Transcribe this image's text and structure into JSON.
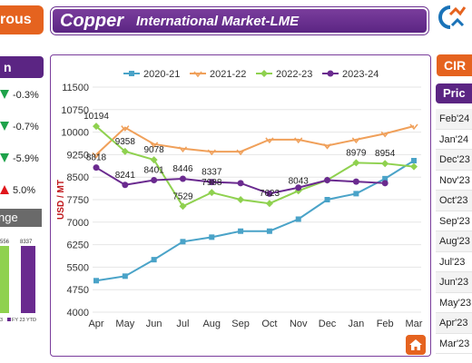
{
  "header": {
    "left_tab": "rous",
    "title": "Copper",
    "subtitle": "International Market-LME"
  },
  "left_panel": {
    "header": "n",
    "changes": [
      {
        "dir": "down",
        "value": "-0.3%"
      },
      {
        "dir": "down",
        "value": "-0.7%"
      },
      {
        "dir": "down",
        "value": "-5.9%"
      },
      {
        "dir": "up",
        "value": "5.0%"
      }
    ],
    "change_label": "nge",
    "bars": {
      "values": [
        "556",
        "8337"
      ],
      "legend": [
        "3",
        "FY 23 YTD"
      ]
    },
    "colors": {
      "up": "#e0161b",
      "down": "#1ea24a"
    }
  },
  "right_panel": {
    "tab": "CIR",
    "header": "Pric",
    "months": [
      "Feb'24",
      "Jan'24",
      "Dec'23",
      "Nov'23",
      "Oct'23",
      "Sep'23",
      "Aug'23",
      "Jul'23",
      "Jun'23",
      "May'23",
      "Apr'23",
      "Mar'23"
    ]
  },
  "chart_data": {
    "type": "line",
    "categories": [
      "Apr",
      "May",
      "Jun",
      "Jul",
      "Aug",
      "Sep",
      "Oct",
      "Nov",
      "Dec",
      "Jan",
      "Feb",
      "Mar"
    ],
    "ylabel": "USD / MT",
    "ylim": [
      4000,
      11500
    ],
    "yticks": [
      4000,
      4750,
      5500,
      6250,
      7000,
      7750,
      8500,
      9250,
      10000,
      10750,
      11500
    ],
    "legend_position": "top",
    "series": [
      {
        "name": "2020-21",
        "color": "#4aa3c8",
        "marker": "square",
        "values": [
          5050,
          5200,
          5750,
          6350,
          6500,
          6700,
          6700,
          7100,
          7750,
          7950,
          8450,
          9050
        ]
      },
      {
        "name": "2021-22",
        "color": "#f0a05a",
        "marker": "triangle",
        "values": [
          9250,
          10150,
          9600,
          9450,
          9350,
          9350,
          9750,
          9750,
          9550,
          9750,
          9950,
          10200
        ]
      },
      {
        "name": "2022-23",
        "color": "#8fd14f",
        "marker": "diamond",
        "values": [
          10194,
          9358,
          9078,
          7529,
          7988,
          7750,
          7623,
          8043,
          8400,
          8979,
          8954,
          8850
        ]
      },
      {
        "name": "2023-24",
        "color": "#6a2a8f",
        "marker": "circle",
        "values": [
          8818,
          8241,
          8401,
          8446,
          8337,
          8300,
          7950,
          8150,
          8400,
          8350,
          8300,
          null
        ]
      }
    ],
    "labels": [
      {
        "series": 2,
        "index": 0,
        "text": "10194"
      },
      {
        "series": 2,
        "index": 1,
        "text": "9358"
      },
      {
        "series": 2,
        "index": 2,
        "text": "9078"
      },
      {
        "series": 2,
        "index": 3,
        "text": "7529"
      },
      {
        "series": 2,
        "index": 4,
        "text": "7988"
      },
      {
        "series": 2,
        "index": 6,
        "text": "7623"
      },
      {
        "series": 2,
        "index": 7,
        "text": "8043"
      },
      {
        "series": 2,
        "index": 9,
        "text": "8979"
      },
      {
        "series": 2,
        "index": 10,
        "text": "8954"
      },
      {
        "series": 3,
        "index": 0,
        "text": "8818"
      },
      {
        "series": 3,
        "index": 1,
        "text": "8241"
      },
      {
        "series": 3,
        "index": 2,
        "text": "8401"
      },
      {
        "series": 3,
        "index": 3,
        "text": "8446"
      },
      {
        "series": 3,
        "index": 4,
        "text": "8337"
      }
    ]
  }
}
